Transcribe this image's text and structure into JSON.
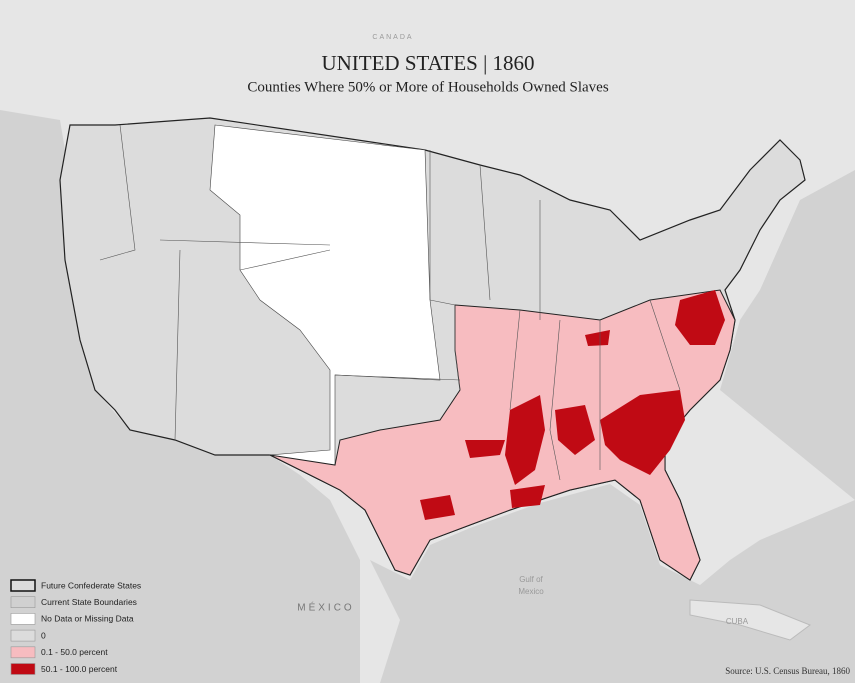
{
  "header": {
    "title": "UNITED STATES | 1860",
    "subtitle": "Counties Where 50% or More of Households Owned Slaves"
  },
  "place_labels": [
    "CANADA",
    "MÉXICO",
    "Gulf of",
    "Mexico",
    "CUBA"
  ],
  "legend": {
    "items": [
      {
        "label": "Future Confederate States",
        "color": "#dcdcdc"
      },
      {
        "label": "Current State Boundaries",
        "color": "#d0d0d0"
      },
      {
        "label": "No Data or Missing Data",
        "color": "#ffffff"
      },
      {
        "label": "0",
        "color": "#dcdcdc"
      },
      {
        "label": "0.1 - 50.0 percent",
        "color": "#f7bcc0"
      },
      {
        "label": "50.1 - 100.0 percent",
        "color": "#c00a14"
      }
    ]
  },
  "source": "Source: U.S. Census Bureau, 1860"
}
